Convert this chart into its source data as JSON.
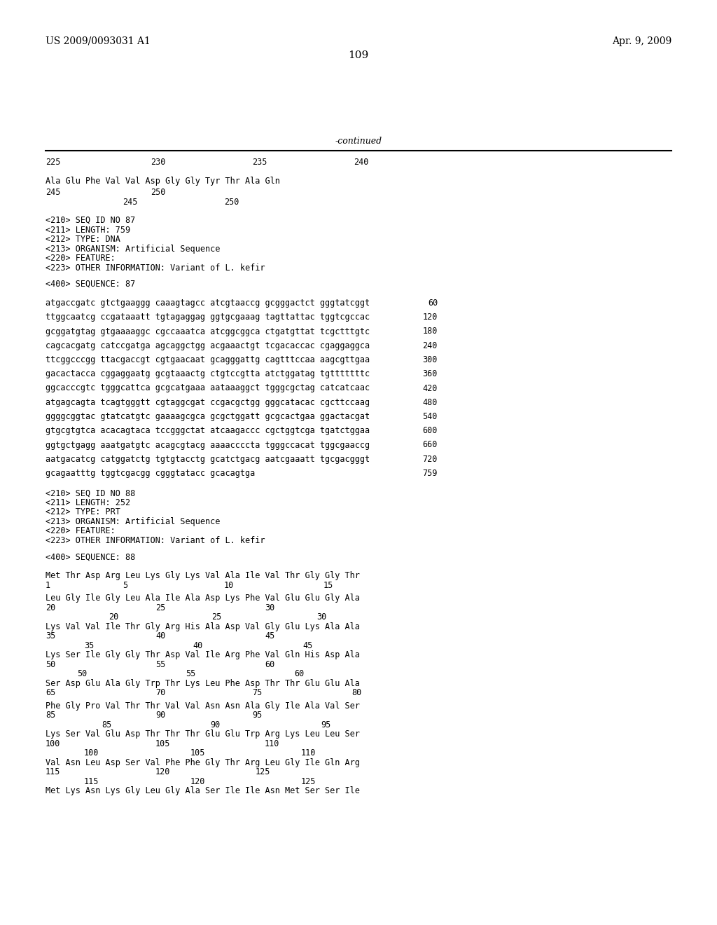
{
  "bg_color": "#ffffff",
  "header_left": "US 2009/0093031 A1",
  "header_right": "Apr. 9, 2009",
  "page_number": "109",
  "continued_label": "-continued",
  "dna_seqs": [
    [
      "atgaccgatc gtctgaaggg caaagtagcc atcgtaaccg gcgggactct gggtatcggt",
      "60"
    ],
    [
      "ttggcaatcg ccgataaatt tgtagaggag ggtgcgaaag tagttattac tggtcgccac",
      "120"
    ],
    [
      "gcggatgtag gtgaaaaggc cgccaaatca atcggcggca ctgatgttat tcgctttgtc",
      "180"
    ],
    [
      "cagcacgatg catccgatga agcaggctgg acgaaactgt tcgacaccac cgaggaggca",
      "240"
    ],
    [
      "ttcggcccgg ttacgaccgt cgtgaacaat gcagggattg cagtttccaa aagcgttgaa",
      "300"
    ],
    [
      "gacactacca cggaggaatg gcgtaaactg ctgtccgtta atctggatag tgtttttttc",
      "360"
    ],
    [
      "ggcacccgtc tgggcattca gcgcatgaaa aataaaggct tgggcgctag catcatcaac",
      "420"
    ],
    [
      "atgagcagta tcagtgggtt cgtaggcgat ccgacgctgg gggcatacac cgcttccaag",
      "480"
    ],
    [
      "ggggcggtac gtatcatgtc gaaaagcgca gcgctggatt gcgcactgaa ggactacgat",
      "540"
    ],
    [
      "gtgcgtgtca acacagtaca tccgggctat atcaagaccc cgctggtcga tgatctggaa",
      "600"
    ],
    [
      "ggtgctgagg aaatgatgtc acagcgtacg aaaaccccta tgggccacat tggcgaaccg",
      "660"
    ],
    [
      "aatgacatcg catggatctg tgtgtacctg gcatctgacg aatcgaaatt tgcgacgggt",
      "720"
    ],
    [
      "gcagaatttg tggtcgacgg cgggtatacc gcacagtga",
      "759"
    ]
  ]
}
